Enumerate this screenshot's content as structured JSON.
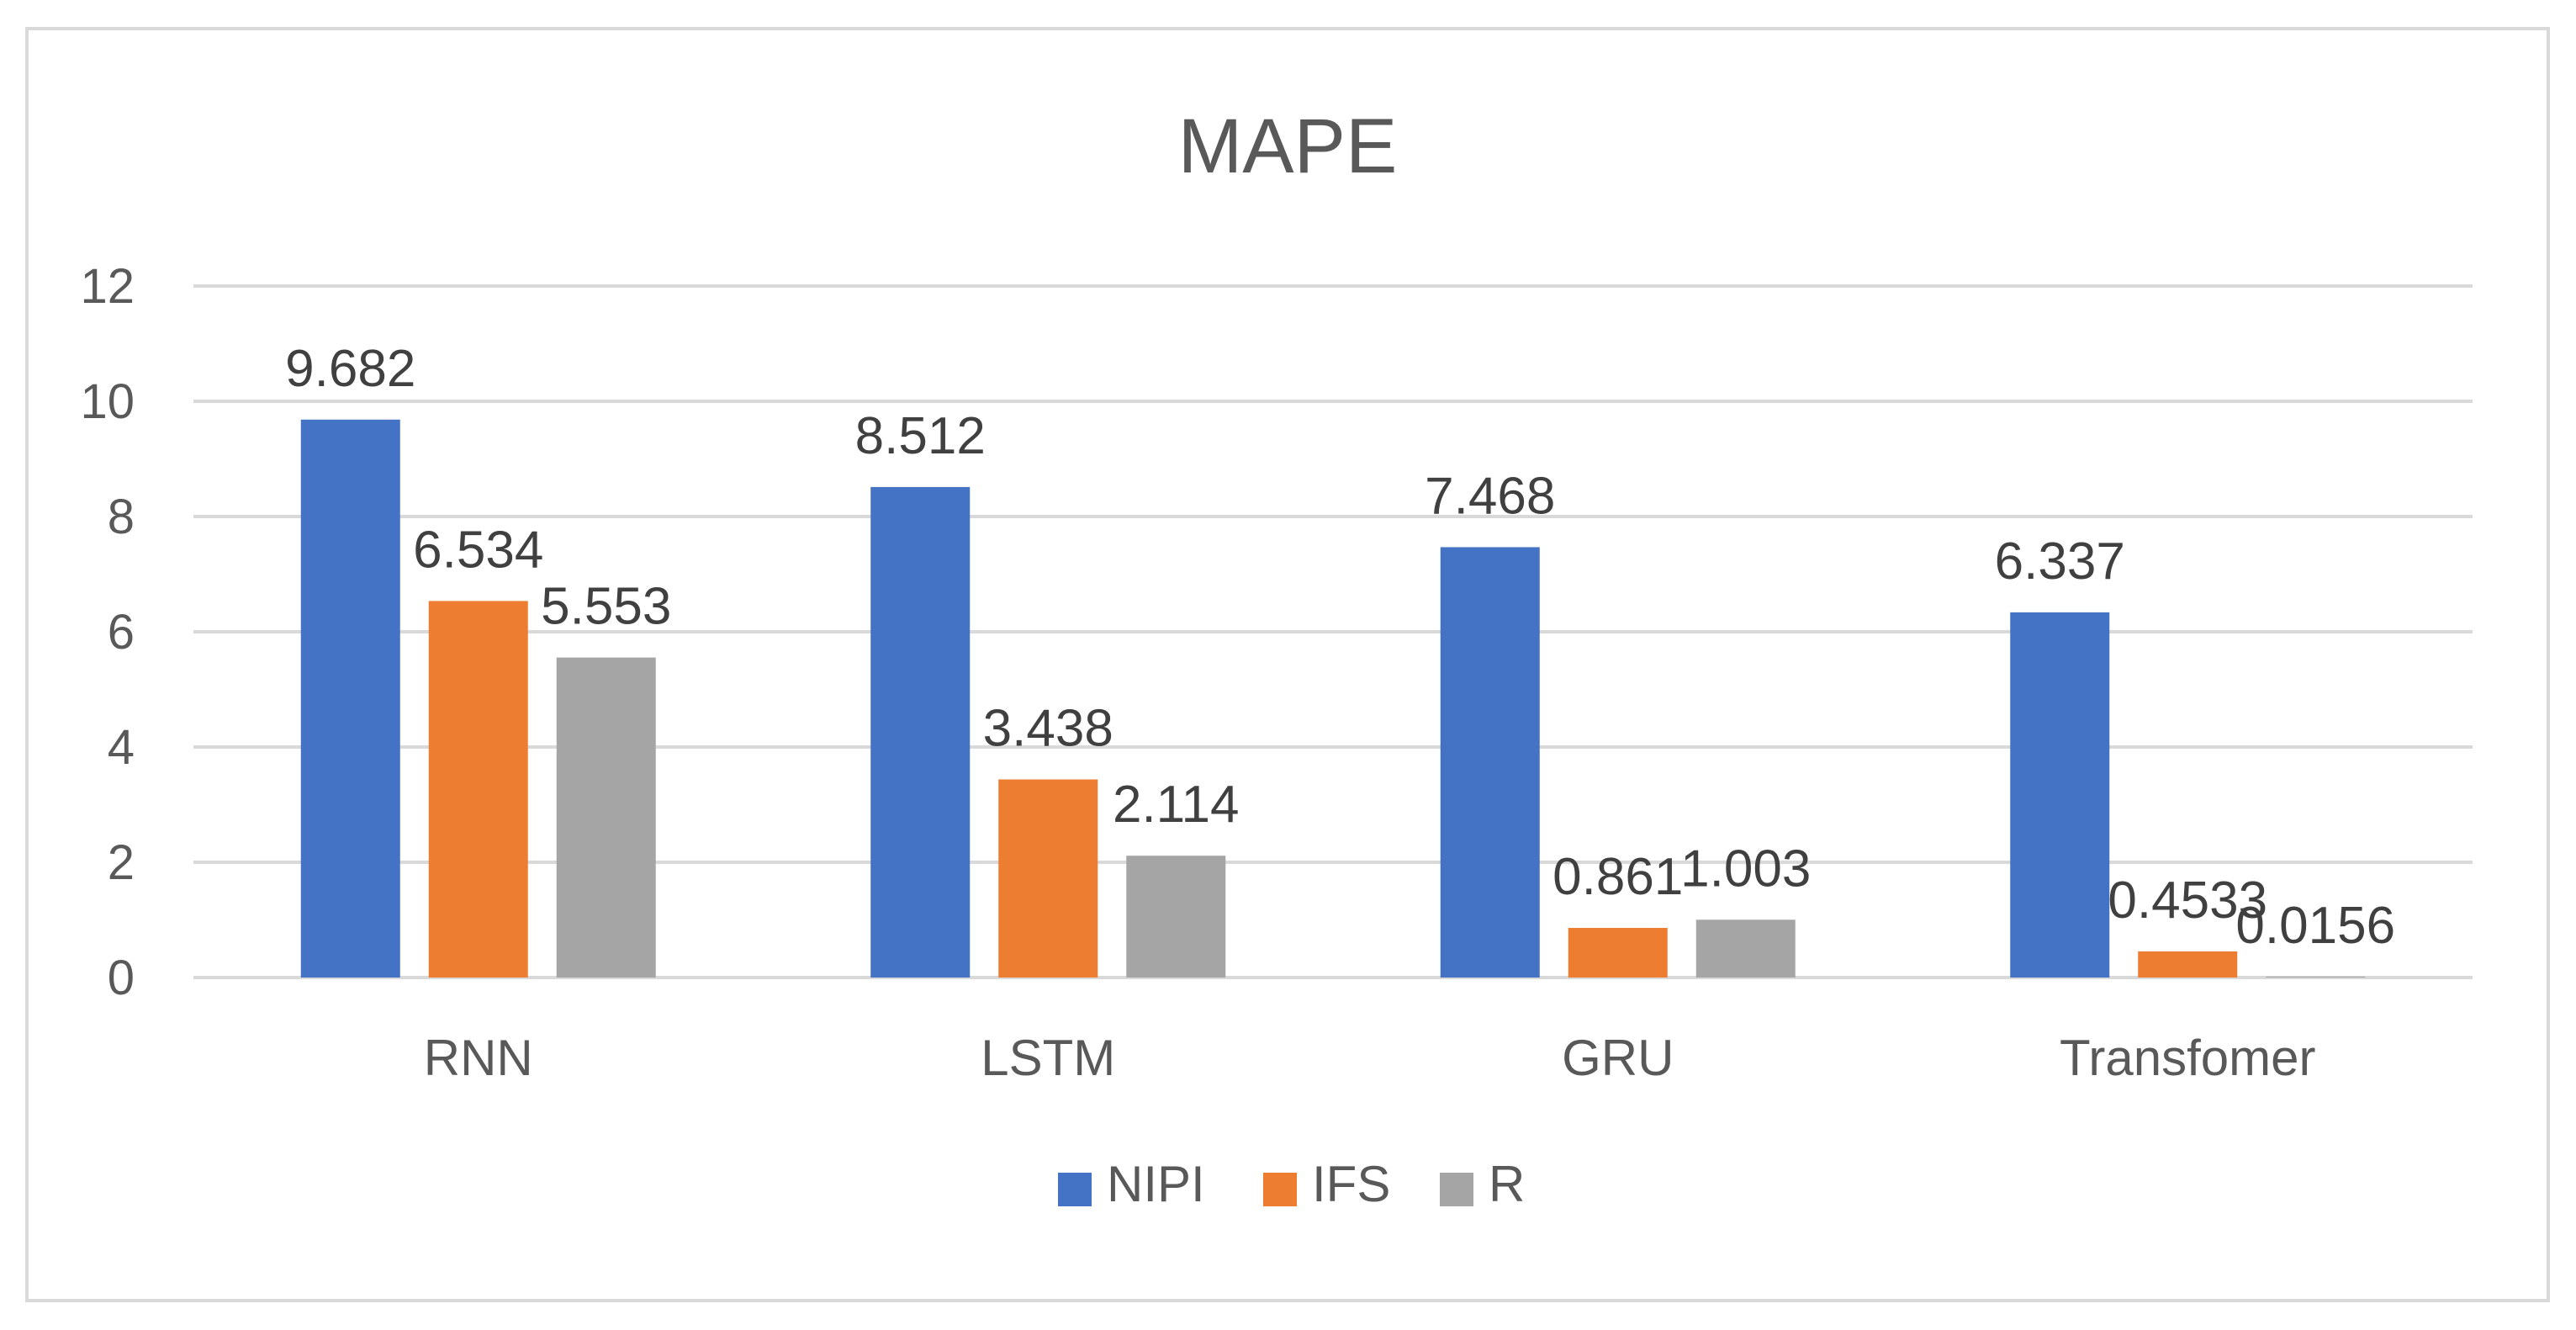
{
  "chart_data": {
    "type": "bar",
    "title": "MAPE",
    "categories": [
      "RNN",
      "LSTM",
      "GRU",
      "Transfomer"
    ],
    "series": [
      {
        "name": "NIPI",
        "color": "#4472c4",
        "values": [
          9.682,
          8.512,
          7.468,
          6.337
        ],
        "labels": [
          "9.682",
          "8.512",
          "7.468",
          "6.337"
        ]
      },
      {
        "name": "IFS",
        "color": "#ed7d31",
        "values": [
          6.534,
          3.438,
          0.861,
          0.4533
        ],
        "labels": [
          "6.534",
          "3.438",
          "0.861",
          "0.4533"
        ]
      },
      {
        "name": "R",
        "color": "#a5a5a5",
        "values": [
          5.553,
          2.114,
          1.003,
          0.0156
        ],
        "labels": [
          "5.553",
          "2.114",
          "1.003",
          "0.0156"
        ]
      }
    ],
    "ylim": [
      0,
      12
    ],
    "yticks": [
      "0",
      "2",
      "4",
      "6",
      "8",
      "10",
      "12"
    ],
    "grid": true,
    "legend_position": "bottom",
    "xlabel": "",
    "ylabel": ""
  }
}
